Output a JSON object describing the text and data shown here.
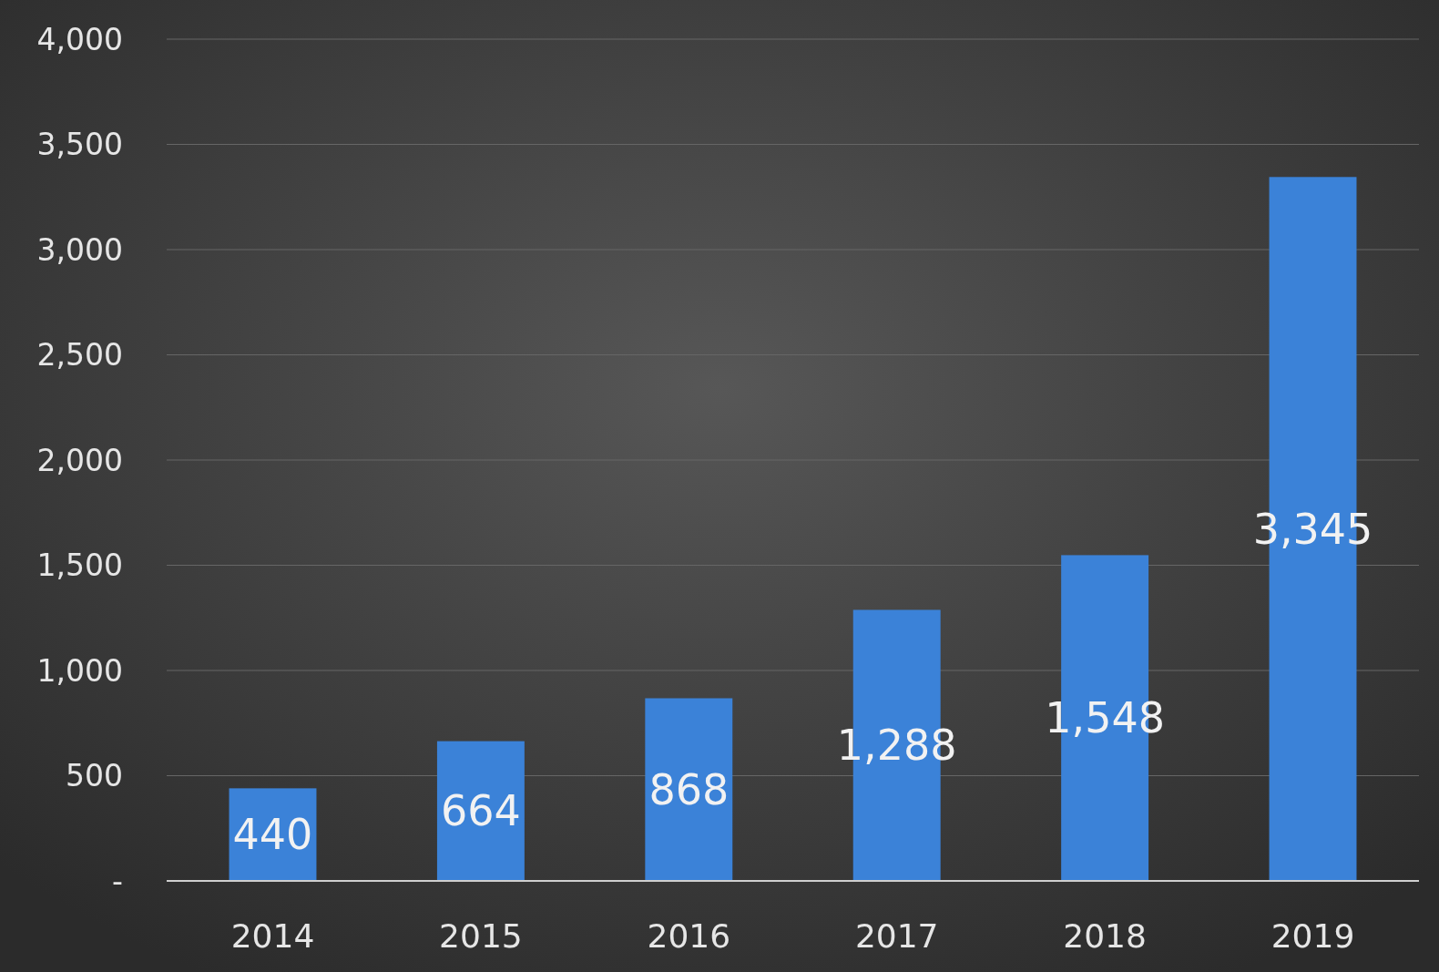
{
  "chart_data": {
    "type": "bar",
    "categories": [
      "2014",
      "2015",
      "2016",
      "2017",
      "2018",
      "2019"
    ],
    "values": [
      440,
      664,
      868,
      1288,
      1548,
      3345
    ],
    "color": "#3b82d8",
    "ylim": [
      0,
      4000
    ],
    "yticks": [
      {
        "value": 0,
        "label": "-"
      },
      {
        "value": 500,
        "label": "500"
      },
      {
        "value": 1000,
        "label": "1,000"
      },
      {
        "value": 1500,
        "label": "1,500"
      },
      {
        "value": 2000,
        "label": "2,000"
      },
      {
        "value": 2500,
        "label": "2,500"
      },
      {
        "value": 3000,
        "label": "3,000"
      },
      {
        "value": 3500,
        "label": "3,500"
      },
      {
        "value": 4000,
        "label": "4,000"
      }
    ],
    "grid": "y",
    "value_labels": [
      "440",
      "664",
      "868",
      "1,288",
      "1,548",
      "3,345"
    ]
  }
}
